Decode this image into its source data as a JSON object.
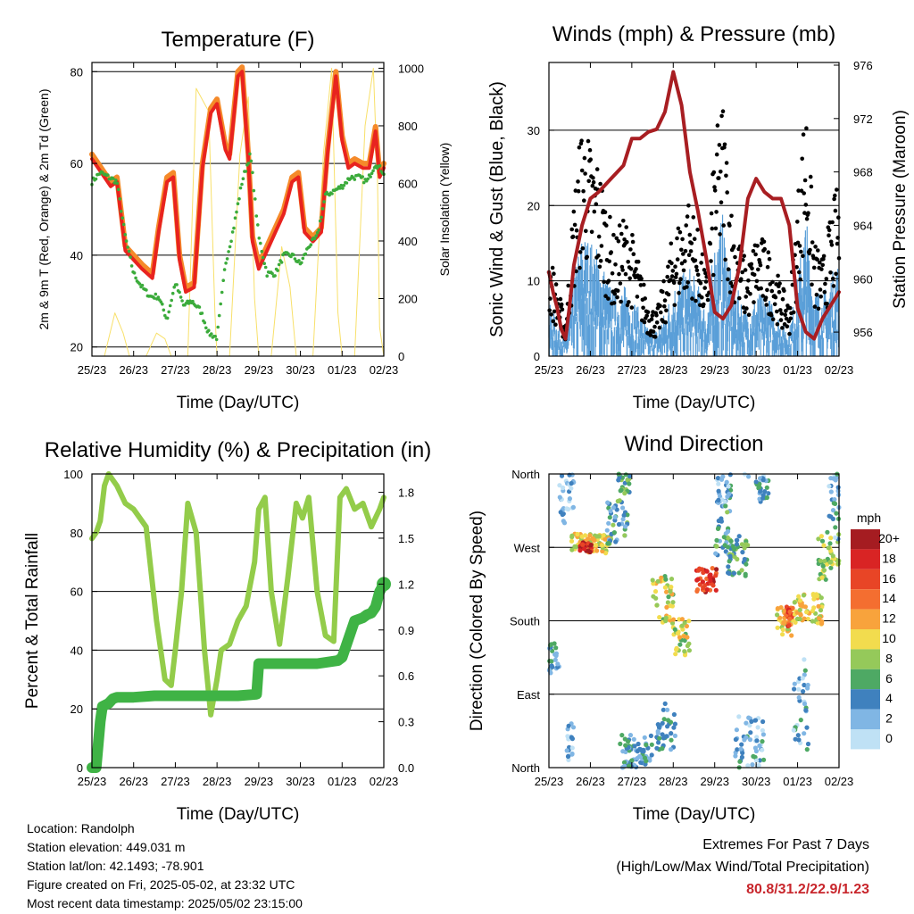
{
  "x_ticks": [
    "25/23",
    "26/23",
    "27/23",
    "28/23",
    "29/23",
    "30/23",
    "01/23",
    "02/23"
  ],
  "info": {
    "location": "Location: Randolph",
    "elevation": "Station elevation: 449.031 m",
    "latlon": "Station lat/lon: 42.1493; -78.901",
    "created": "Figure created on Fri, 2025-05-02, at 23:32 UTC",
    "recent": "Most recent data timestamp: 2025/05/02 23:15:00"
  },
  "extremes": {
    "title": "Extremes For Past 7 Days",
    "subtitle": "(High/Low/Max Wind/Total Precipitation)",
    "values": "80.8/31.2/22.9/1.23",
    "value_color": "#c8262c"
  },
  "colors": {
    "temp_2m": "#e8231f",
    "temp_9m": "#f58a2a",
    "dewpoint": "#3bab3b",
    "solar": "#f8e06a",
    "wind": "#5a9fd8",
    "gust": "#000000",
    "pressure": "#a81e22",
    "rh": "#93cc4a",
    "precip": "#3fb345"
  },
  "chart_data": [
    {
      "type": "line",
      "title": "Temperature (F)",
      "xlabel": "Time (Day/UTC)",
      "ylabel": "2m & 9m T (Red, Orange) & 2m Td (Green)",
      "y2label": "Solar Insolation (Yellow)",
      "ylim": [
        18,
        82
      ],
      "yticks": [
        20,
        40,
        60,
        80
      ],
      "y2lim": [
        0,
        1020
      ],
      "y2ticks": [
        0,
        200,
        400,
        600,
        800,
        1000
      ],
      "xlim": [
        0,
        7
      ],
      "series": [
        {
          "color_key": "temp_9m",
          "x": [
            0,
            0.15,
            0.3,
            0.45,
            0.6,
            0.8,
            1.0,
            1.2,
            1.45,
            1.6,
            1.8,
            1.95,
            2.1,
            2.25,
            2.45,
            2.65,
            2.85,
            3.0,
            3.2,
            3.3,
            3.5,
            3.6,
            3.75,
            3.85,
            4.0,
            4.2,
            4.4,
            4.6,
            4.8,
            4.95,
            5.1,
            5.3,
            5.5,
            5.65,
            5.85,
            6.0,
            6.15,
            6.3,
            6.5,
            6.65,
            6.8,
            6.9,
            7.0
          ],
          "y": [
            62,
            60,
            58,
            56,
            57,
            42,
            40,
            38,
            36,
            46,
            57,
            58,
            40,
            33,
            34,
            60,
            72,
            74,
            64,
            62,
            80,
            81,
            62,
            44,
            38,
            42,
            46,
            50,
            57,
            58,
            46,
            44,
            46,
            63,
            80,
            66,
            60,
            61,
            60,
            60,
            68,
            58,
            60
          ]
        },
        {
          "color_key": "temp_2m",
          "x": [
            0,
            0.15,
            0.3,
            0.45,
            0.6,
            0.8,
            1.0,
            1.2,
            1.45,
            1.6,
            1.8,
            1.95,
            2.1,
            2.25,
            2.45,
            2.65,
            2.85,
            3.0,
            3.2,
            3.3,
            3.5,
            3.6,
            3.75,
            3.85,
            4.0,
            4.2,
            4.4,
            4.6,
            4.8,
            4.95,
            5.1,
            5.3,
            5.5,
            5.65,
            5.85,
            6.0,
            6.15,
            6.3,
            6.5,
            6.65,
            6.8,
            6.9,
            7.0
          ],
          "y": [
            61,
            59,
            57,
            55,
            56,
            41,
            39,
            37,
            35,
            45,
            56,
            57,
            39,
            32,
            33,
            59,
            71,
            73,
            63,
            61,
            79,
            80,
            61,
            43,
            37,
            41,
            45,
            49,
            56,
            57,
            45,
            43,
            45,
            62,
            79,
            65,
            59,
            60,
            59,
            59,
            67,
            57,
            59
          ]
        },
        {
          "color_key": "dewpoint",
          "x": [
            0,
            0.2,
            0.4,
            0.6,
            0.8,
            1.0,
            1.2,
            1.4,
            1.6,
            1.8,
            2.0,
            2.2,
            2.4,
            2.6,
            2.8,
            3.0,
            3.2,
            3.4,
            3.6,
            3.8,
            4.0,
            4.2,
            4.4,
            4.6,
            4.8,
            5.0,
            5.2,
            5.4,
            5.6,
            5.8,
            6.0,
            6.2,
            6.4,
            6.6,
            6.8,
            7.0
          ],
          "y": [
            56,
            58,
            57,
            56,
            44,
            36,
            33,
            31,
            31,
            26,
            34,
            29,
            30,
            28,
            23,
            22,
            38,
            46,
            56,
            62,
            44,
            36,
            36,
            40,
            40,
            38,
            42,
            44,
            53,
            54,
            55,
            57,
            57,
            56,
            60,
            58
          ]
        },
        {
          "color_key": "solar",
          "axis": "y2",
          "x": [
            0,
            0.3,
            0.55,
            0.75,
            0.9,
            1.0,
            1.3,
            1.55,
            1.75,
            1.9,
            2.0,
            2.3,
            2.5,
            2.8,
            2.95,
            3.0,
            3.3,
            3.55,
            3.75,
            3.9,
            4.0,
            4.3,
            4.55,
            4.75,
            4.9,
            5.0,
            5.3,
            5.55,
            5.75,
            5.9,
            6.0,
            6.3,
            6.55,
            6.75,
            6.85,
            6.9,
            7.0
          ],
          "y": [
            0,
            0,
            150,
            80,
            0,
            0,
            0,
            80,
            60,
            0,
            0,
            0,
            930,
            850,
            150,
            0,
            0,
            700,
            900,
            200,
            0,
            0,
            380,
            240,
            0,
            0,
            0,
            700,
            1000,
            150,
            0,
            0,
            800,
            1000,
            600,
            100,
            0
          ]
        }
      ]
    },
    {
      "type": "line",
      "title": "Winds (mph) & Pressure (mb)",
      "xlabel": "Time (Day/UTC)",
      "ylabel": "Sonic Wind & Gust (Blue, Black)",
      "y2label": "Station Pressure (Maroon)",
      "ylim": [
        0,
        39
      ],
      "yticks": [
        0,
        10,
        20,
        30
      ],
      "y2lim": [
        954.2,
        976.2
      ],
      "y2ticks": [
        956,
        960,
        964,
        968,
        972,
        976
      ],
      "xlim": [
        0,
        7
      ],
      "series": [
        {
          "color_key": "gust",
          "x": [
            0,
            0.2,
            0.4,
            0.6,
            0.8,
            1.0,
            1.2,
            1.4,
            1.6,
            1.8,
            2.0,
            2.2,
            2.4,
            2.6,
            2.8,
            3.0,
            3.2,
            3.4,
            3.6,
            3.8,
            4.0,
            4.2,
            4.4,
            4.6,
            4.8,
            5.0,
            5.2,
            5.4,
            5.6,
            5.8,
            6.0,
            6.2,
            6.4,
            6.6,
            6.8,
            7.0
          ],
          "y": [
            12,
            8,
            4,
            18,
            27,
            24,
            22,
            17,
            13,
            16,
            14,
            10,
            6,
            5,
            9,
            14,
            16,
            18,
            14,
            9,
            24,
            29,
            17,
            13,
            10,
            14,
            13,
            11,
            8,
            6,
            18,
            30,
            13,
            11,
            16,
            20
          ]
        },
        {
          "color_key": "wind",
          "x": [
            0,
            0.2,
            0.4,
            0.6,
            0.8,
            1.0,
            1.2,
            1.4,
            1.6,
            1.8,
            2.0,
            2.2,
            2.4,
            2.6,
            2.8,
            3.0,
            3.2,
            3.4,
            3.6,
            3.8,
            4.0,
            4.2,
            4.4,
            4.6,
            4.8,
            5.0,
            5.2,
            5.4,
            5.6,
            5.8,
            6.0,
            6.2,
            6.4,
            6.6,
            6.8,
            7.0
          ],
          "y": [
            6,
            4,
            2,
            9,
            14,
            13,
            12,
            9,
            7,
            8,
            7,
            5,
            3,
            3,
            5,
            8,
            9,
            10,
            8,
            5,
            13,
            16,
            9,
            7,
            5,
            7,
            7,
            6,
            4,
            3,
            9,
            16,
            8,
            7,
            9,
            11
          ]
        },
        {
          "color_key": "pressure",
          "axis": "y2",
          "x": [
            0,
            0.1,
            0.2,
            0.3,
            0.4,
            0.5,
            0.6,
            0.8,
            1.0,
            1.2,
            1.5,
            1.8,
            2.0,
            2.2,
            2.4,
            2.6,
            2.8,
            3.0,
            3.2,
            3.4,
            3.6,
            3.8,
            4.0,
            4.2,
            4.4,
            4.6,
            4.8,
            5.0,
            5.2,
            5.4,
            5.6,
            5.8,
            6.0,
            6.2,
            6.4,
            6.6,
            6.8,
            7.0
          ],
          "y": [
            960.5,
            959,
            957.8,
            956.2,
            955.5,
            958,
            961,
            964,
            966,
            966.5,
            967.5,
            968.5,
            970.5,
            970.5,
            971,
            971.2,
            972.5,
            975.5,
            973,
            968,
            965,
            961.5,
            957.5,
            957,
            958,
            961,
            966,
            967.5,
            966.5,
            966,
            966,
            964,
            957.8,
            956,
            955.5,
            957,
            958,
            959
          ]
        }
      ]
    },
    {
      "type": "line",
      "title": "Relative Humidity (%) & Precipitation (in)",
      "xlabel": "Time (Day/UTC)",
      "ylabel": "Percent & Total Rainfall",
      "ylim": [
        0,
        100
      ],
      "yticks": [
        0,
        20,
        40,
        60,
        80,
        100
      ],
      "y2lim": [
        0,
        1.92
      ],
      "y2ticks": [
        "0.0",
        "0.3",
        "0.6",
        "0.9",
        "1.2",
        "1.5",
        "1.8"
      ],
      "xlim": [
        0,
        7
      ],
      "series": [
        {
          "color_key": "rh",
          "x": [
            0,
            0.1,
            0.2,
            0.3,
            0.4,
            0.6,
            0.8,
            1.0,
            1.3,
            1.55,
            1.75,
            1.9,
            2.0,
            2.15,
            2.3,
            2.5,
            2.7,
            2.85,
            3.0,
            3.1,
            3.3,
            3.5,
            3.7,
            3.9,
            4.0,
            4.15,
            4.3,
            4.5,
            4.7,
            4.9,
            5.05,
            5.2,
            5.4,
            5.6,
            5.8,
            5.95,
            6.1,
            6.3,
            6.5,
            6.7,
            6.9,
            7.0
          ],
          "y": [
            78,
            80,
            84,
            96,
            100,
            96,
            90,
            88,
            82,
            50,
            30,
            28,
            40,
            60,
            90,
            80,
            40,
            18,
            30,
            40,
            42,
            50,
            55,
            70,
            88,
            92,
            60,
            42,
            65,
            90,
            85,
            92,
            60,
            45,
            43,
            92,
            95,
            88,
            90,
            82,
            88,
            92
          ]
        },
        {
          "color_key": "precip",
          "axis": "y2",
          "x": [
            0,
            0.1,
            0.2,
            0.25,
            0.4,
            0.5,
            0.6,
            0.8,
            1.0,
            1.5,
            2.0,
            2.5,
            3.0,
            3.5,
            3.95,
            4.0,
            4.5,
            4.9,
            5.0,
            5.4,
            5.9,
            6.0,
            6.3,
            6.5,
            6.6,
            6.7,
            6.8,
            6.9,
            7.0
          ],
          "y": [
            0,
            0,
            0.3,
            0.4,
            0.42,
            0.45,
            0.46,
            0.46,
            0.46,
            0.47,
            0.47,
            0.47,
            0.47,
            0.47,
            0.48,
            0.68,
            0.68,
            0.68,
            0.68,
            0.68,
            0.7,
            0.72,
            0.96,
            0.98,
            1.0,
            1.01,
            1.05,
            1.15,
            1.2
          ]
        }
      ]
    },
    {
      "type": "scatter",
      "title": "Wind Direction",
      "xlabel": "Time (Day/UTC)",
      "ylabel": "Direction (Colored By Speed)",
      "yticks": [
        "North",
        "East",
        "South",
        "West",
        "North"
      ],
      "ylim": [
        0,
        360
      ],
      "xlim": [
        0,
        7
      ],
      "colorbar": {
        "title": "mph",
        "labels": [
          "20+",
          "18",
          "16",
          "14",
          "12",
          "10",
          "8",
          "6",
          "4",
          "2",
          "0"
        ],
        "colors": [
          "#a51c21",
          "#d92424",
          "#e84526",
          "#f46e30",
          "#f8a33c",
          "#f2dc4e",
          "#95c95a",
          "#4ea964",
          "#3f81be",
          "#80b6e4",
          "#bfe1f5"
        ]
      },
      "clusters": [
        {
          "x0": 0.0,
          "x1": 0.25,
          "dir": 135,
          "spread": 20,
          "speed": 4
        },
        {
          "x0": 0.25,
          "x1": 0.6,
          "dir": 330,
          "spread": 30,
          "speed": 2
        },
        {
          "x0": 0.4,
          "x1": 0.6,
          "dir": 30,
          "spread": 25,
          "speed": 2
        },
        {
          "x0": 0.55,
          "x1": 1.5,
          "dir": 275,
          "spread": 12,
          "speed": 10
        },
        {
          "x0": 0.75,
          "x1": 1.05,
          "dir": 270,
          "spread": 6,
          "speed": 18
        },
        {
          "x0": 1.4,
          "x1": 1.9,
          "dir": 300,
          "spread": 30,
          "speed": 5
        },
        {
          "x0": 1.65,
          "x1": 1.95,
          "dir": 350,
          "spread": 15,
          "speed": 6
        },
        {
          "x0": 1.7,
          "x1": 2.5,
          "dir": 20,
          "spread": 20,
          "speed": 4
        },
        {
          "x0": 2.5,
          "x1": 3.0,
          "dir": 205,
          "spread": 30,
          "speed": 9
        },
        {
          "x0": 2.6,
          "x1": 3.05,
          "dir": 50,
          "spread": 30,
          "speed": 4
        },
        {
          "x0": 3.0,
          "x1": 3.4,
          "dir": 160,
          "spread": 25,
          "speed": 9
        },
        {
          "x0": 3.55,
          "x1": 4.05,
          "dir": 230,
          "spread": 15,
          "speed": 17
        },
        {
          "x0": 4.0,
          "x1": 4.4,
          "dir": 285,
          "spread": 30,
          "speed": 5
        },
        {
          "x0": 4.05,
          "x1": 4.4,
          "dir": 340,
          "spread": 20,
          "speed": 3
        },
        {
          "x0": 4.3,
          "x1": 4.8,
          "dir": 260,
          "spread": 25,
          "speed": 6
        },
        {
          "x0": 4.5,
          "x1": 5.2,
          "dir": 30,
          "spread": 35,
          "speed": 3
        },
        {
          "x0": 5.0,
          "x1": 5.3,
          "dir": 340,
          "spread": 15,
          "speed": 4
        },
        {
          "x0": 5.5,
          "x1": 5.9,
          "dir": 180,
          "spread": 20,
          "speed": 10
        },
        {
          "x0": 5.7,
          "x1": 5.9,
          "dir": 185,
          "spread": 12,
          "speed": 16
        },
        {
          "x0": 5.9,
          "x1": 6.6,
          "dir": 195,
          "spread": 20,
          "speed": 10
        },
        {
          "x0": 5.9,
          "x1": 6.3,
          "dir": 80,
          "spread": 60,
          "speed": 3
        },
        {
          "x0": 6.5,
          "x1": 7.0,
          "dir": 260,
          "spread": 30,
          "speed": 8
        },
        {
          "x0": 6.7,
          "x1": 7.0,
          "dir": 320,
          "spread": 40,
          "speed": 3
        }
      ]
    }
  ]
}
